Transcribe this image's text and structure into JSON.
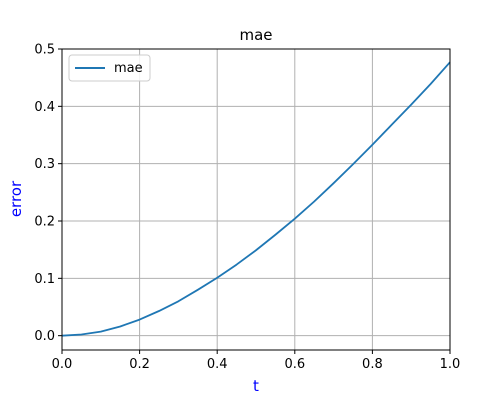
{
  "chart_data": {
    "type": "line",
    "title": "mae",
    "xlabel": "t",
    "ylabel": "error",
    "xlim": [
      0.0,
      1.0
    ],
    "ylim": [
      -0.025,
      0.5
    ],
    "xticks": [
      "0.0",
      "0.2",
      "0.4",
      "0.6",
      "0.8",
      "1.0"
    ],
    "yticks": [
      "0.0",
      "0.1",
      "0.2",
      "0.3",
      "0.4",
      "0.5"
    ],
    "grid": true,
    "legend_position": "top-left",
    "series": [
      {
        "name": "mae",
        "color": "#1f77b4",
        "x": [
          0.0,
          0.05,
          0.1,
          0.15,
          0.2,
          0.25,
          0.3,
          0.35,
          0.4,
          0.45,
          0.5,
          0.55,
          0.6,
          0.65,
          0.7,
          0.75,
          0.8,
          0.85,
          0.9,
          0.95,
          1.0
        ],
        "y": [
          0.0,
          0.002,
          0.007,
          0.016,
          0.028,
          0.043,
          0.06,
          0.08,
          0.101,
          0.124,
          0.149,
          0.176,
          0.204,
          0.234,
          0.266,
          0.299,
          0.333,
          0.368,
          0.403,
          0.439,
          0.477
        ]
      }
    ],
    "colors": {
      "axis_label": "#0000ff",
      "grid": "#b0b0b0"
    }
  }
}
